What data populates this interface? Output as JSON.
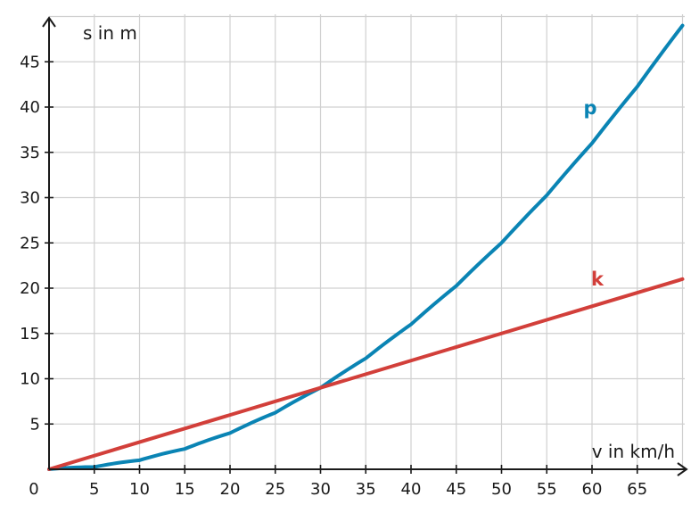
{
  "chart_data": {
    "type": "line",
    "xlabel": "v in km/h",
    "ylabel": "s in m",
    "xlim": [
      0,
      70
    ],
    "ylim": [
      0,
      50
    ],
    "grid": true,
    "origin_label": "0",
    "x_ticks": [
      5,
      10,
      15,
      20,
      25,
      30,
      35,
      40,
      45,
      50,
      55,
      60,
      65
    ],
    "y_ticks": [
      5,
      10,
      15,
      20,
      25,
      30,
      35,
      40,
      45
    ],
    "series": [
      {
        "name": "p",
        "color": "#0a84b4",
        "x": [
          0,
          5,
          10,
          15,
          20,
          25,
          30,
          35,
          40,
          45,
          50,
          55,
          60,
          65,
          70
        ],
        "y": [
          0,
          0.25,
          1,
          2.25,
          4,
          6.25,
          9,
          12.25,
          16,
          20.25,
          25,
          30.25,
          36,
          42.25,
          49
        ]
      },
      {
        "name": "k",
        "color": "#d23f3a",
        "x": [
          0,
          70
        ],
        "y": [
          0,
          21
        ]
      }
    ]
  }
}
